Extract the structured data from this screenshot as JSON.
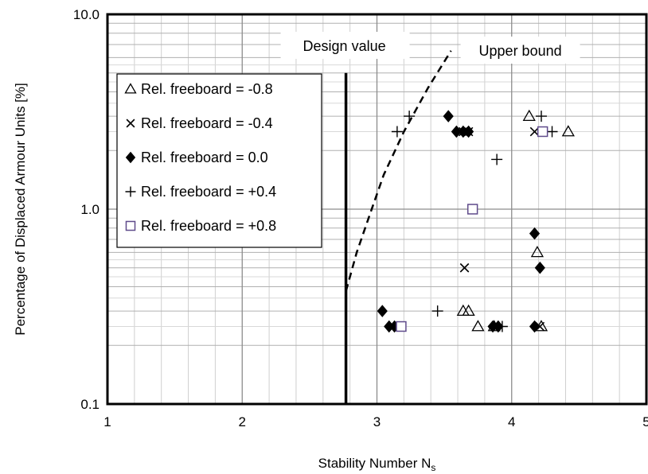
{
  "chart_data": {
    "type": "scatter",
    "title": "",
    "xlabel": "Stability Number N",
    "xlabel_subscript": "s",
    "ylabel": "Percentage of Displaced Armour Units [%]",
    "xlim": [
      1,
      5
    ],
    "ylim": [
      0.1,
      10
    ],
    "y_scale": "log",
    "grid": true,
    "x_ticks": [
      "1",
      "2",
      "3",
      "4",
      "5"
    ],
    "y_ticks": [
      {
        "value": 0.1,
        "label": "0.1"
      },
      {
        "value": 1,
        "label": "1.0"
      },
      {
        "value": 10,
        "label": "10.0"
      }
    ],
    "legend_position": "top-left",
    "series": [
      {
        "name": "Rel. freeboard = -0.8",
        "legend_symbol": "△",
        "marker": "triangle-open",
        "color": "#000000",
        "points": [
          {
            "x": 4.13,
            "y": 3.0
          },
          {
            "x": 4.42,
            "y": 2.5
          },
          {
            "x": 4.19,
            "y": 0.6
          },
          {
            "x": 3.64,
            "y": 0.3
          },
          {
            "x": 3.68,
            "y": 0.3
          },
          {
            "x": 3.75,
            "y": 0.25
          },
          {
            "x": 3.87,
            "y": 0.25
          },
          {
            "x": 4.22,
            "y": 0.25
          }
        ]
      },
      {
        "name": "Rel. freeboard = -0.4",
        "legend_symbol": "×",
        "marker": "x",
        "color": "#000000",
        "points": [
          {
            "x": 3.64,
            "y": 2.5
          },
          {
            "x": 3.68,
            "y": 2.5
          },
          {
            "x": 4.17,
            "y": 2.5
          },
          {
            "x": 3.65,
            "y": 0.5
          },
          {
            "x": 4.21,
            "y": 0.25
          }
        ]
      },
      {
        "name": "Rel. freeboard = 0.0",
        "legend_symbol": "◆",
        "marker": "diamond-filled",
        "color": "#000000",
        "points": [
          {
            "x": 3.53,
            "y": 3.0
          },
          {
            "x": 3.59,
            "y": 2.5
          },
          {
            "x": 3.64,
            "y": 2.5
          },
          {
            "x": 3.68,
            "y": 2.5
          },
          {
            "x": 4.17,
            "y": 0.75
          },
          {
            "x": 4.21,
            "y": 0.5
          },
          {
            "x": 3.04,
            "y": 0.3
          },
          {
            "x": 3.09,
            "y": 0.25
          },
          {
            "x": 3.13,
            "y": 0.25
          },
          {
            "x": 3.86,
            "y": 0.25
          },
          {
            "x": 3.9,
            "y": 0.25
          },
          {
            "x": 4.17,
            "y": 0.25
          }
        ]
      },
      {
        "name": "Rel. freeboard = +0.4",
        "legend_symbol": "+",
        "marker": "plus",
        "color": "#000000",
        "points": [
          {
            "x": 3.24,
            "y": 3.0
          },
          {
            "x": 3.15,
            "y": 2.5
          },
          {
            "x": 4.22,
            "y": 3.0
          },
          {
            "x": 4.3,
            "y": 2.5
          },
          {
            "x": 3.89,
            "y": 1.8
          },
          {
            "x": 3.45,
            "y": 0.3
          },
          {
            "x": 3.93,
            "y": 0.25
          }
        ]
      },
      {
        "name": "Rel. freeboard = +0.8",
        "legend_symbol": "□",
        "marker": "square-open",
        "color": "#5f4b8b",
        "points": [
          {
            "x": 4.23,
            "y": 2.5
          },
          {
            "x": 3.71,
            "y": 1.0
          },
          {
            "x": 3.18,
            "y": 0.25
          }
        ]
      }
    ],
    "annotations": [
      {
        "label": "Design value",
        "kind": "vertical-line",
        "x": 2.77,
        "y_from": 0.1,
        "y_to": 5.0
      },
      {
        "label": "Upper bound",
        "kind": "dashed-curve",
        "points": [
          {
            "x": 2.77,
            "y": 0.38
          },
          {
            "x": 2.85,
            "y": 0.6
          },
          {
            "x": 2.95,
            "y": 0.95
          },
          {
            "x": 3.05,
            "y": 1.5
          },
          {
            "x": 3.2,
            "y": 2.5
          },
          {
            "x": 3.38,
            "y": 4.2
          },
          {
            "x": 3.55,
            "y": 6.5
          }
        ]
      }
    ]
  }
}
